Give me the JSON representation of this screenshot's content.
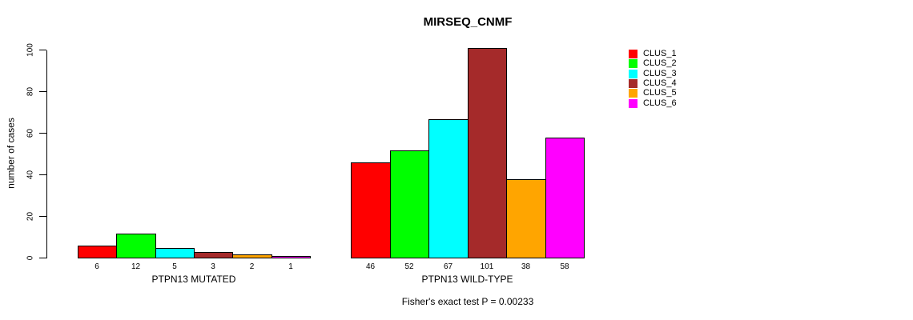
{
  "chart_data": {
    "type": "bar",
    "title": "MIRSEQ_CNMF",
    "ylabel": "number of cases",
    "ylim": [
      0,
      100
    ],
    "yticks": [
      0,
      20,
      40,
      60,
      80,
      100
    ],
    "grid": false,
    "legend_position": "right-outside",
    "series": [
      {
        "name": "CLUS_1",
        "color": "#ff0000"
      },
      {
        "name": "CLUS_2",
        "color": "#00ff00"
      },
      {
        "name": "CLUS_3",
        "color": "#00ffff"
      },
      {
        "name": "CLUS_4",
        "color": "#a52a2a"
      },
      {
        "name": "CLUS_5",
        "color": "#ffa500"
      },
      {
        "name": "CLUS_6",
        "color": "#ff00ff"
      }
    ],
    "groups": [
      {
        "label": "PTPN13 MUTATED",
        "values": [
          6,
          12,
          5,
          3,
          2,
          1
        ]
      },
      {
        "label": "PTPN13 WILD-TYPE",
        "values": [
          46,
          52,
          67,
          101,
          38,
          58
        ]
      }
    ],
    "bar_value_labels_shown": true,
    "annotation": "Fisher's exact test P = 0.00233"
  },
  "colors": {
    "background": "#ffffff",
    "axis": "#000000",
    "bar_border": "#000000",
    "text": "#000000"
  }
}
